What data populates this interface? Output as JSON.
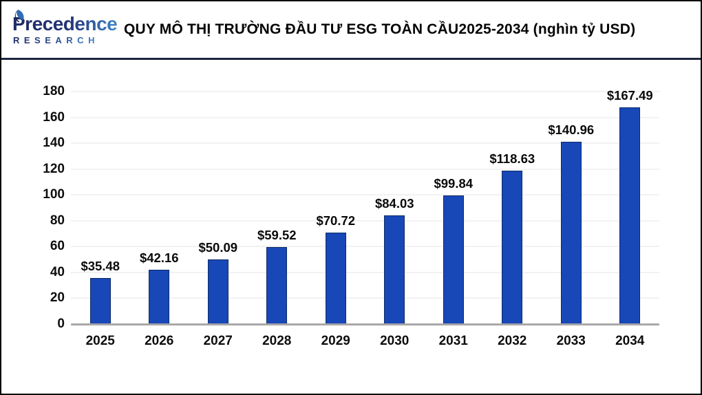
{
  "header": {
    "logo": {
      "line1": "Precedence",
      "line2": "RESEARCH",
      "leaf_icon": "leaf-icon",
      "navy_color": "#1d2a63",
      "blue_color": "#3f86c6"
    },
    "title": "QUY MÔ THỊ TRƯỜNG ĐẦU TƯ ESG TOÀN CẦU2025-2034 (nghìn tỷ USD)"
  },
  "chart_data": {
    "type": "bar",
    "title": "QUY MÔ THỊ TRƯỜNG ĐẦU TƯ ESG TOÀN CẦU2025-2034 (nghìn tỷ USD)",
    "categories": [
      "2025",
      "2026",
      "2027",
      "2028",
      "2029",
      "2030",
      "2031",
      "2032",
      "2033",
      "2034"
    ],
    "values": [
      35.48,
      42.16,
      50.09,
      59.52,
      70.72,
      84.03,
      99.84,
      118.63,
      140.96,
      167.49
    ],
    "value_labels": [
      "$35.48",
      "$42.16",
      "$50.09",
      "$59.52",
      "$70.72",
      "$84.03",
      "$99.84",
      "$118.63",
      "$140.96",
      "$167.49"
    ],
    "xlabel": "",
    "ylabel": "",
    "ylim": [
      0,
      180
    ],
    "ytick_step": 20,
    "ytick_labels": [
      "0",
      "20",
      "40",
      "60",
      "80",
      "100",
      "120",
      "140",
      "160",
      "180"
    ],
    "grid": "horizontal",
    "legend": "none",
    "bar_color": "#1847b8",
    "bar_border_color": "#0d2b66",
    "baseline_color": "#a8a8a8",
    "gridline_color": "#f2f2f2"
  }
}
